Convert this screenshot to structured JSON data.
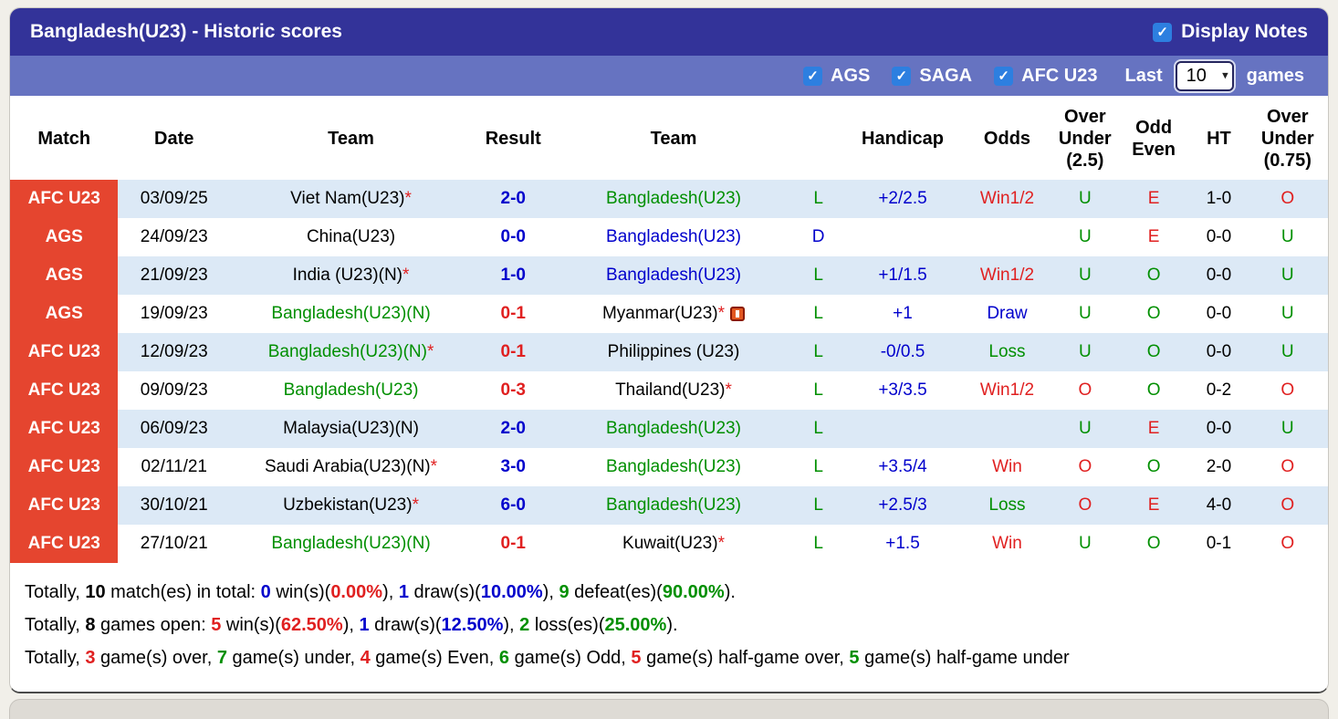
{
  "colors": {
    "blue": "#0000cc",
    "green": "#008f00",
    "red": "#e02020",
    "black": "#000000",
    "header_bg": "#333399",
    "filter_bg": "#6673c1",
    "badge_bg": "#e5452f",
    "row_shade": "#dce9f6",
    "checkbox_blue": "#2d7fe0"
  },
  "header": {
    "title": "Bangladesh(U23) - Historic scores",
    "display_notes": {
      "label": "Display Notes",
      "checked": true
    }
  },
  "filter_bar": {
    "checkboxes": [
      {
        "label": "AGS",
        "checked": true
      },
      {
        "label": "SAGA",
        "checked": true
      },
      {
        "label": "AFC U23",
        "checked": true
      }
    ],
    "last_label": "Last",
    "games_count": "10",
    "games_label": "games"
  },
  "table": {
    "columns": [
      {
        "key": "match",
        "label": "Match"
      },
      {
        "key": "date",
        "label": "Date"
      },
      {
        "key": "team1",
        "label": "Team"
      },
      {
        "key": "result",
        "label": "Result"
      },
      {
        "key": "team2",
        "label": "Team"
      },
      {
        "key": "letter",
        "label": ""
      },
      {
        "key": "handicap",
        "label": "Handicap"
      },
      {
        "key": "odds",
        "label": "Odds"
      },
      {
        "key": "ou25",
        "label": "Over Under (2.5)",
        "lines": [
          "Over",
          "Under",
          "(2.5)"
        ]
      },
      {
        "key": "oddeven",
        "label": "Odd Even",
        "lines": [
          "Odd",
          "Even"
        ]
      },
      {
        "key": "ht",
        "label": "HT"
      },
      {
        "key": "ou075",
        "label": "Over Under (0.75)",
        "lines": [
          "Over",
          "Under",
          "(0.75)"
        ]
      }
    ],
    "rows": [
      {
        "badge": "AFC U23",
        "date": "03/09/25",
        "home": {
          "name": "Viet Nam(U23)",
          "star": true,
          "color": "black"
        },
        "score": {
          "text": "2-0",
          "color": "blue"
        },
        "away": {
          "name": "Bangladesh(U23)",
          "color": "green"
        },
        "letter": {
          "text": "L",
          "color": "green"
        },
        "handicap": {
          "text": "+2/2.5",
          "color": "blue"
        },
        "odds": {
          "text": "Win1/2",
          "color": "red"
        },
        "ou25": {
          "text": "U",
          "color": "green"
        },
        "oddeven": {
          "text": "E",
          "color": "red"
        },
        "ht": {
          "text": "1-0",
          "color": "black"
        },
        "ou075": {
          "text": "O",
          "color": "red"
        }
      },
      {
        "badge": "AGS",
        "date": "24/09/23",
        "home": {
          "name": "China(U23)",
          "color": "black"
        },
        "score": {
          "text": "0-0",
          "color": "blue"
        },
        "away": {
          "name": "Bangladesh(U23)",
          "color": "blue"
        },
        "letter": {
          "text": "D",
          "color": "blue"
        },
        "handicap": {
          "text": ""
        },
        "odds": {
          "text": ""
        },
        "ou25": {
          "text": "U",
          "color": "green"
        },
        "oddeven": {
          "text": "E",
          "color": "red"
        },
        "ht": {
          "text": "0-0",
          "color": "black"
        },
        "ou075": {
          "text": "U",
          "color": "green"
        }
      },
      {
        "badge": "AGS",
        "date": "21/09/23",
        "home": {
          "name": "India (U23)(N)",
          "star": true,
          "color": "black"
        },
        "score": {
          "text": "1-0",
          "color": "blue"
        },
        "away": {
          "name": "Bangladesh(U23)",
          "color": "blue"
        },
        "letter": {
          "text": "L",
          "color": "green"
        },
        "handicap": {
          "text": "+1/1.5",
          "color": "blue"
        },
        "odds": {
          "text": "Win1/2",
          "color": "red"
        },
        "ou25": {
          "text": "U",
          "color": "green"
        },
        "oddeven": {
          "text": "O",
          "color": "green"
        },
        "ht": {
          "text": "0-0",
          "color": "black"
        },
        "ou075": {
          "text": "U",
          "color": "green"
        }
      },
      {
        "badge": "AGS",
        "date": "19/09/23",
        "home": {
          "name": "Bangladesh(U23)(N)",
          "color": "green"
        },
        "score": {
          "text": "0-1",
          "color": "red"
        },
        "away": {
          "name": "Myanmar(U23)",
          "star": true,
          "color": "black",
          "icon": "red-card"
        },
        "letter": {
          "text": "L",
          "color": "green"
        },
        "handicap": {
          "text": "+1",
          "color": "blue"
        },
        "odds": {
          "text": "Draw",
          "color": "blue"
        },
        "ou25": {
          "text": "U",
          "color": "green"
        },
        "oddeven": {
          "text": "O",
          "color": "green"
        },
        "ht": {
          "text": "0-0",
          "color": "black"
        },
        "ou075": {
          "text": "U",
          "color": "green"
        }
      },
      {
        "badge": "AFC U23",
        "date": "12/09/23",
        "home": {
          "name": "Bangladesh(U23)(N)",
          "star": true,
          "color": "green"
        },
        "score": {
          "text": "0-1",
          "color": "red"
        },
        "away": {
          "name": "Philippines (U23)",
          "color": "black"
        },
        "letter": {
          "text": "L",
          "color": "green"
        },
        "handicap": {
          "text": "-0/0.5",
          "color": "blue"
        },
        "odds": {
          "text": "Loss",
          "color": "green"
        },
        "ou25": {
          "text": "U",
          "color": "green"
        },
        "oddeven": {
          "text": "O",
          "color": "green"
        },
        "ht": {
          "text": "0-0",
          "color": "black"
        },
        "ou075": {
          "text": "U",
          "color": "green"
        }
      },
      {
        "badge": "AFC U23",
        "date": "09/09/23",
        "home": {
          "name": "Bangladesh(U23)",
          "color": "green"
        },
        "score": {
          "text": "0-3",
          "color": "red"
        },
        "away": {
          "name": "Thailand(U23)",
          "star": true,
          "color": "black"
        },
        "letter": {
          "text": "L",
          "color": "green"
        },
        "handicap": {
          "text": "+3/3.5",
          "color": "blue"
        },
        "odds": {
          "text": "Win1/2",
          "color": "red"
        },
        "ou25": {
          "text": "O",
          "color": "red"
        },
        "oddeven": {
          "text": "O",
          "color": "green"
        },
        "ht": {
          "text": "0-2",
          "color": "black"
        },
        "ou075": {
          "text": "O",
          "color": "red"
        }
      },
      {
        "badge": "AFC U23",
        "date": "06/09/23",
        "home": {
          "name": "Malaysia(U23)(N)",
          "color": "black"
        },
        "score": {
          "text": "2-0",
          "color": "blue"
        },
        "away": {
          "name": "Bangladesh(U23)",
          "color": "green"
        },
        "letter": {
          "text": "L",
          "color": "green"
        },
        "handicap": {
          "text": ""
        },
        "odds": {
          "text": ""
        },
        "ou25": {
          "text": "U",
          "color": "green"
        },
        "oddeven": {
          "text": "E",
          "color": "red"
        },
        "ht": {
          "text": "0-0",
          "color": "black"
        },
        "ou075": {
          "text": "U",
          "color": "green"
        }
      },
      {
        "badge": "AFC U23",
        "date": "02/11/21",
        "home": {
          "name": "Saudi Arabia(U23)(N)",
          "star": true,
          "color": "black"
        },
        "score": {
          "text": "3-0",
          "color": "blue"
        },
        "away": {
          "name": "Bangladesh(U23)",
          "color": "green"
        },
        "letter": {
          "text": "L",
          "color": "green"
        },
        "handicap": {
          "text": "+3.5/4",
          "color": "blue"
        },
        "odds": {
          "text": "Win",
          "color": "red"
        },
        "ou25": {
          "text": "O",
          "color": "red"
        },
        "oddeven": {
          "text": "O",
          "color": "green"
        },
        "ht": {
          "text": "2-0",
          "color": "black"
        },
        "ou075": {
          "text": "O",
          "color": "red"
        }
      },
      {
        "badge": "AFC U23",
        "date": "30/10/21",
        "home": {
          "name": "Uzbekistan(U23)",
          "star": true,
          "color": "black"
        },
        "score": {
          "text": "6-0",
          "color": "blue"
        },
        "away": {
          "name": "Bangladesh(U23)",
          "color": "green"
        },
        "letter": {
          "text": "L",
          "color": "green"
        },
        "handicap": {
          "text": "+2.5/3",
          "color": "blue"
        },
        "odds": {
          "text": "Loss",
          "color": "green"
        },
        "ou25": {
          "text": "O",
          "color": "red"
        },
        "oddeven": {
          "text": "E",
          "color": "red"
        },
        "ht": {
          "text": "4-0",
          "color": "black"
        },
        "ou075": {
          "text": "O",
          "color": "red"
        }
      },
      {
        "badge": "AFC U23",
        "date": "27/10/21",
        "home": {
          "name": "Bangladesh(U23)(N)",
          "color": "green"
        },
        "score": {
          "text": "0-1",
          "color": "red"
        },
        "away": {
          "name": "Kuwait(U23)",
          "star": true,
          "color": "black"
        },
        "letter": {
          "text": "L",
          "color": "green"
        },
        "handicap": {
          "text": "+1.5",
          "color": "blue"
        },
        "odds": {
          "text": "Win",
          "color": "red"
        },
        "ou25": {
          "text": "U",
          "color": "green"
        },
        "oddeven": {
          "text": "O",
          "color": "green"
        },
        "ht": {
          "text": "0-1",
          "color": "black"
        },
        "ou075": {
          "text": "O",
          "color": "red"
        }
      }
    ]
  },
  "summary": [
    [
      {
        "t": "Totally, "
      },
      {
        "t": "10",
        "b": 1
      },
      {
        "t": " match(es) in total: "
      },
      {
        "t": "0",
        "c": "blue",
        "b": 1
      },
      {
        "t": " win(s)("
      },
      {
        "t": "0.00%",
        "c": "red",
        "b": 1
      },
      {
        "t": "), "
      },
      {
        "t": "1",
        "c": "blue",
        "b": 1
      },
      {
        "t": " draw(s)("
      },
      {
        "t": "10.00%",
        "c": "blue",
        "b": 1
      },
      {
        "t": "), "
      },
      {
        "t": "9",
        "c": "green",
        "b": 1
      },
      {
        "t": " defeat(es)("
      },
      {
        "t": "90.00%",
        "c": "green",
        "b": 1
      },
      {
        "t": ")."
      }
    ],
    [
      {
        "t": "Totally, "
      },
      {
        "t": "8",
        "b": 1
      },
      {
        "t": " games open: "
      },
      {
        "t": "5",
        "c": "red",
        "b": 1
      },
      {
        "t": " win(s)("
      },
      {
        "t": "62.50%",
        "c": "red",
        "b": 1
      },
      {
        "t": "), "
      },
      {
        "t": "1",
        "c": "blue",
        "b": 1
      },
      {
        "t": " draw(s)("
      },
      {
        "t": "12.50%",
        "c": "blue",
        "b": 1
      },
      {
        "t": "), "
      },
      {
        "t": "2",
        "c": "green",
        "b": 1
      },
      {
        "t": " loss(es)("
      },
      {
        "t": "25.00%",
        "c": "green",
        "b": 1
      },
      {
        "t": ")."
      }
    ],
    [
      {
        "t": "Totally, "
      },
      {
        "t": "3",
        "c": "red",
        "b": 1
      },
      {
        "t": " game(s) over, "
      },
      {
        "t": "7",
        "c": "green",
        "b": 1
      },
      {
        "t": " game(s) under, "
      },
      {
        "t": "4",
        "c": "red",
        "b": 1
      },
      {
        "t": " game(s) Even, "
      },
      {
        "t": "6",
        "c": "green",
        "b": 1
      },
      {
        "t": " game(s) Odd, "
      },
      {
        "t": "5",
        "c": "red",
        "b": 1
      },
      {
        "t": " game(s) half-game over, "
      },
      {
        "t": "5",
        "c": "green",
        "b": 1
      },
      {
        "t": " game(s) half-game under"
      }
    ]
  ]
}
